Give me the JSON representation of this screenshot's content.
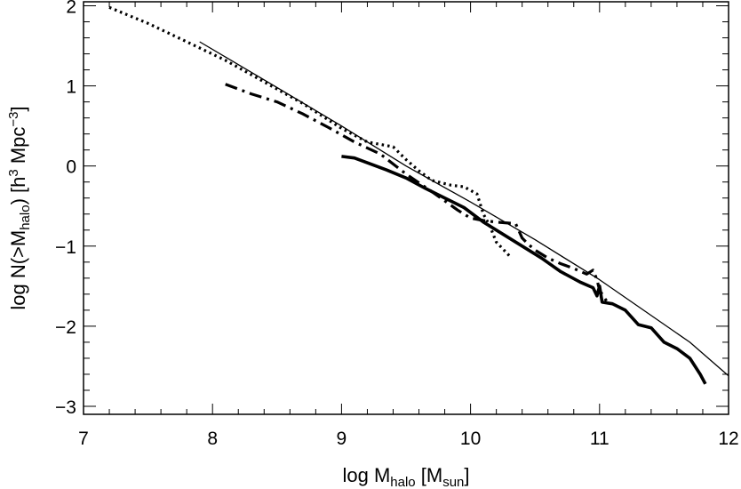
{
  "chart_data": {
    "type": "line",
    "xlabel": {
      "pre": "log M",
      "sub": "halo",
      "post": " [M",
      "unit_sub": "sun",
      "end": "]"
    },
    "ylabel": {
      "pre": "log N(>M",
      "sub": "halo",
      "post": ")  [h",
      "sup1": "3",
      "mid": " Mpc",
      "sup2": "−3",
      "end": "]"
    },
    "xlim": [
      7,
      12
    ],
    "ylim": [
      -3.1,
      2.05
    ],
    "xticks": [
      7,
      8,
      9,
      10,
      11,
      12
    ],
    "xtick_labels": [
      "7",
      "8",
      "9",
      "10",
      "11",
      "12"
    ],
    "yticks": [
      -3,
      -2,
      -1,
      0,
      1,
      2
    ],
    "ytick_labels": [
      "−3",
      "−2",
      "−1",
      "0",
      "1",
      "2"
    ],
    "legend": "none",
    "grid": false,
    "series": [
      {
        "style": "thin-solid",
        "x": [
          7.9,
          8.5,
          9.0,
          9.5,
          10.0,
          10.5,
          11.0,
          11.7,
          12.0
        ],
        "y": [
          1.55,
          0.98,
          0.5,
          0.0,
          -0.45,
          -0.92,
          -1.42,
          -2.2,
          -2.62
        ]
      },
      {
        "style": "dotted",
        "x": [
          7.2,
          7.5,
          7.8,
          8.1,
          8.4,
          8.7,
          9.0,
          9.2,
          9.4,
          9.5,
          9.6,
          9.7,
          9.85,
          9.95,
          10.05,
          10.1,
          10.15,
          10.2,
          10.3
        ],
        "y": [
          1.98,
          1.78,
          1.55,
          1.32,
          1.05,
          0.78,
          0.47,
          0.3,
          0.24,
          0.08,
          -0.06,
          -0.18,
          -0.24,
          -0.26,
          -0.35,
          -0.6,
          -0.75,
          -0.95,
          -1.12
        ]
      },
      {
        "style": "dashed",
        "x": [
          8.1,
          8.3,
          8.5,
          8.7,
          8.9,
          9.1,
          9.3,
          9.5,
          9.7,
          9.9,
          10.0,
          10.1,
          10.2,
          10.35,
          10.4,
          10.45,
          10.5,
          10.6,
          10.7,
          10.8,
          10.9,
          10.95,
          10.98,
          11.0,
          11.02,
          11.04,
          11.06
        ],
        "y": [
          1.02,
          0.9,
          0.8,
          0.65,
          0.48,
          0.3,
          0.15,
          -0.1,
          -0.32,
          -0.55,
          -0.65,
          -0.68,
          -0.7,
          -0.72,
          -0.9,
          -0.98,
          -1.05,
          -1.15,
          -1.22,
          -1.28,
          -1.35,
          -1.3,
          -1.42,
          -1.55,
          -1.6,
          -1.65,
          -1.7
        ]
      },
      {
        "style": "thick-solid",
        "x": [
          9.0,
          9.1,
          9.2,
          9.35,
          9.5,
          9.65,
          9.8,
          9.95,
          10.1,
          10.25,
          10.4,
          10.55,
          10.7,
          10.85,
          10.95,
          10.98,
          11.0,
          11.02,
          11.1,
          11.2,
          11.3,
          11.4,
          11.5,
          11.6,
          11.7,
          11.78,
          11.82
        ],
        "y": [
          0.12,
          0.1,
          0.04,
          -0.05,
          -0.15,
          -0.28,
          -0.4,
          -0.52,
          -0.7,
          -0.85,
          -1.0,
          -1.15,
          -1.32,
          -1.45,
          -1.52,
          -1.62,
          -1.5,
          -1.7,
          -1.72,
          -1.8,
          -1.98,
          -2.02,
          -2.2,
          -2.28,
          -2.4,
          -2.6,
          -2.72
        ]
      }
    ]
  }
}
